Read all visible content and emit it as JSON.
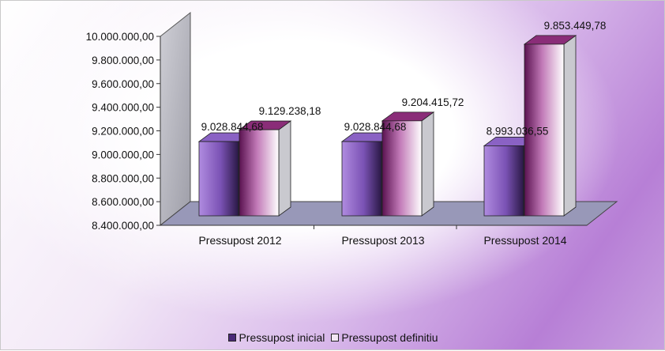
{
  "chart_data": {
    "type": "bar",
    "title": "",
    "xlabel": "",
    "ylabel": "",
    "categories": [
      "Pressupost 2012",
      "Pressupost 2013",
      "Pressupost 2014"
    ],
    "series": [
      {
        "name": "Pressupost inicial",
        "values": [
          9028844.68,
          9028844.68,
          8993036.55
        ],
        "labels": [
          "9.028.844,68",
          "9.028.844,68",
          "8.993.036,55"
        ],
        "color": "#7a4fb0"
      },
      {
        "name": "Pressupost definitiu",
        "values": [
          9129238.18,
          9204415.72,
          9853449.78
        ],
        "labels": [
          "9.129.238,18",
          "9.204.415,72",
          "9.853.449,78"
        ],
        "color": "#7a1f6a"
      }
    ],
    "ylim": [
      8400000,
      10000000
    ],
    "yticks": [
      8400000,
      8600000,
      8800000,
      9000000,
      9200000,
      9400000,
      9600000,
      9800000,
      10000000
    ],
    "ytick_labels": [
      "8.400.000,00",
      "8.600.000,00",
      "8.800.000,00",
      "9.000.000,00",
      "9.200.000,00",
      "9.400.000,00",
      "9.600.000,00",
      "9.800.000,00",
      "10.000.000,00"
    ],
    "grid": false,
    "legend_position": "bottom",
    "style": "3d-clustered-column"
  }
}
